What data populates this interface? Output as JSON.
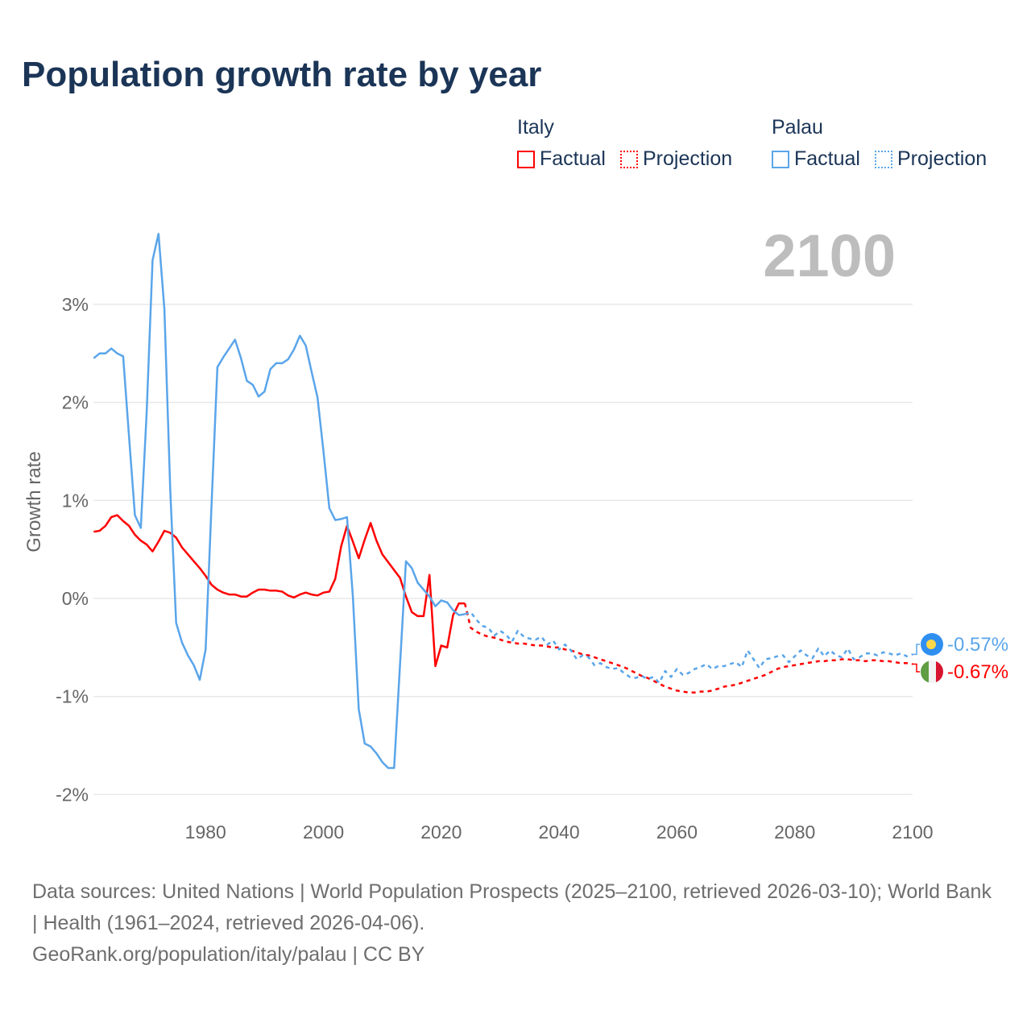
{
  "title": "Population growth rate by year",
  "year_display": "2100",
  "legend": {
    "italy": {
      "name": "Italy",
      "factual": "Factual",
      "projection": "Projection",
      "color": "#ff0000"
    },
    "palau": {
      "name": "Palau",
      "factual": "Factual",
      "projection": "Projection",
      "color": "#5aa5ea"
    }
  },
  "footer": {
    "sources": "Data sources: United Nations | World Population Prospects (2025–2100, retrieved 2026-03-10); World Bank | Health (1961–2024, retrieved 2026-04-06).",
    "credit": "GeoRank.org/population/italy/palau | CC BY"
  },
  "chart_data": {
    "type": "line",
    "title": "Population growth rate by year",
    "xlabel": "",
    "ylabel": "Growth rate",
    "xlim": [
      1961,
      2100
    ],
    "ylim": [
      -2.2,
      3.8
    ],
    "xticks": [
      1980,
      2000,
      2020,
      2040,
      2060,
      2080,
      2100
    ],
    "yticks": [
      {
        "v": 3,
        "label": "3%"
      },
      {
        "v": 2,
        "label": "2%"
      },
      {
        "v": 1,
        "label": "1%"
      },
      {
        "v": 0,
        "label": "0%"
      },
      {
        "v": -1,
        "label": "-1%"
      },
      {
        "v": -2,
        "label": "-2%"
      }
    ],
    "grid": true,
    "series": [
      {
        "name": "Italy",
        "kind": "Factual",
        "color": "#ff0000",
        "start": 1961,
        "values": [
          0.68,
          0.69,
          0.74,
          0.83,
          0.85,
          0.79,
          0.74,
          0.65,
          0.59,
          0.55,
          0.48,
          0.58,
          0.69,
          0.67,
          0.62,
          0.52,
          0.45,
          0.38,
          0.31,
          0.23,
          0.14,
          0.09,
          0.06,
          0.04,
          0.04,
          0.02,
          0.02,
          0.06,
          0.09,
          0.09,
          0.08,
          0.08,
          0.07,
          0.03,
          0.01,
          0.04,
          0.06,
          0.04,
          0.03,
          0.06,
          0.07,
          0.2,
          0.53,
          0.74,
          0.58,
          0.41,
          0.6,
          0.77,
          0.59,
          0.45,
          0.37,
          0.29,
          0.21,
          0.02,
          -0.14,
          -0.18,
          -0.18,
          0.24,
          -0.69,
          -0.48,
          -0.5,
          -0.17,
          -0.05,
          -0.05
        ]
      },
      {
        "name": "Italy",
        "kind": "Projection",
        "color": "#ff0000",
        "start": 2024,
        "values": [
          -0.05,
          -0.3,
          -0.34,
          -0.37,
          -0.39,
          -0.4,
          -0.42,
          -0.44,
          -0.45,
          -0.46,
          -0.46,
          -0.47,
          -0.48,
          -0.48,
          -0.49,
          -0.5,
          -0.5,
          -0.52,
          -0.53,
          -0.55,
          -0.57,
          -0.58,
          -0.6,
          -0.62,
          -0.64,
          -0.66,
          -0.68,
          -0.7,
          -0.73,
          -0.76,
          -0.79,
          -0.81,
          -0.84,
          -0.87,
          -0.9,
          -0.92,
          -0.94,
          -0.95,
          -0.96,
          -0.96,
          -0.95,
          -0.95,
          -0.94,
          -0.92,
          -0.9,
          -0.89,
          -0.88,
          -0.86,
          -0.84,
          -0.82,
          -0.8,
          -0.78,
          -0.75,
          -0.72,
          -0.7,
          -0.69,
          -0.68,
          -0.67,
          -0.66,
          -0.65,
          -0.64,
          -0.64,
          -0.63,
          -0.63,
          -0.62,
          -0.62,
          -0.63,
          -0.63,
          -0.64,
          -0.63,
          -0.63,
          -0.64,
          -0.64,
          -0.65,
          -0.66,
          -0.66,
          -0.67
        ]
      },
      {
        "name": "Palau",
        "kind": "Factual",
        "color": "#5aa5ea",
        "start": 1961,
        "values": [
          2.45,
          2.5,
          2.5,
          2.55,
          2.5,
          2.47,
          1.65,
          0.85,
          0.72,
          1.9,
          3.45,
          3.72,
          2.95,
          1.1,
          -0.25,
          -0.45,
          -0.58,
          -0.68,
          -0.83,
          -0.52,
          0.95,
          2.36,
          2.46,
          2.55,
          2.64,
          2.45,
          2.22,
          2.18,
          2.06,
          2.11,
          2.34,
          2.4,
          2.4,
          2.44,
          2.54,
          2.68,
          2.58,
          2.31,
          2.05,
          1.5,
          0.92,
          0.8,
          0.81,
          0.83,
          0.02,
          -1.13,
          -1.48,
          -1.51,
          -1.58,
          -1.67,
          -1.73,
          -1.73,
          -0.68,
          0.38,
          0.31,
          0.16,
          0.09,
          0.02,
          -0.08,
          -0.02,
          -0.04,
          -0.12,
          -0.17,
          -0.16
        ]
      },
      {
        "name": "Palau",
        "kind": "Projection",
        "color": "#5aa5ea",
        "start": 2024,
        "values": [
          -0.16,
          -0.14,
          -0.22,
          -0.28,
          -0.3,
          -0.38,
          -0.33,
          -0.37,
          -0.44,
          -0.33,
          -0.39,
          -0.41,
          -0.42,
          -0.39,
          -0.47,
          -0.43,
          -0.52,
          -0.47,
          -0.53,
          -0.62,
          -0.58,
          -0.6,
          -0.68,
          -0.66,
          -0.7,
          -0.72,
          -0.71,
          -0.76,
          -0.8,
          -0.81,
          -0.79,
          -0.82,
          -0.8,
          -0.86,
          -0.74,
          -0.8,
          -0.72,
          -0.78,
          -0.76,
          -0.72,
          -0.7,
          -0.67,
          -0.72,
          -0.69,
          -0.69,
          -0.67,
          -0.65,
          -0.7,
          -0.53,
          -0.62,
          -0.71,
          -0.62,
          -0.61,
          -0.59,
          -0.58,
          -0.65,
          -0.59,
          -0.53,
          -0.58,
          -0.61,
          -0.51,
          -0.59,
          -0.53,
          -0.58,
          -0.6,
          -0.51,
          -0.62,
          -0.6,
          -0.56,
          -0.56,
          -0.58,
          -0.55,
          -0.56,
          -0.58,
          -0.56,
          -0.59,
          -0.57
        ]
      }
    ],
    "end_labels": [
      {
        "country": "Palau",
        "label": "-0.57%",
        "value": -0.57,
        "color": "#5aa5ea"
      },
      {
        "country": "Italy",
        "label": "-0.67%",
        "value": -0.67,
        "color": "#ff0000"
      }
    ]
  }
}
